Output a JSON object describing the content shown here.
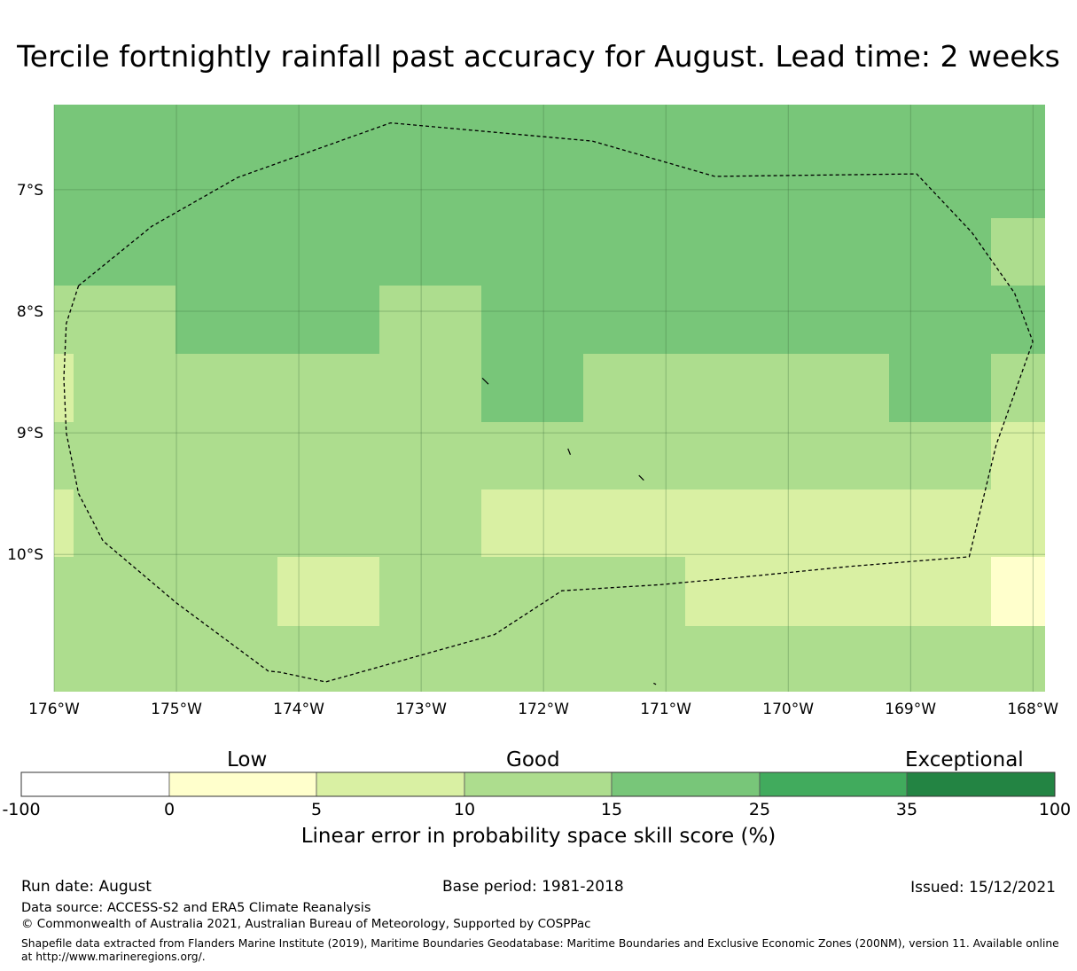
{
  "title": "Tercile fortnightly rainfall past accuracy for August. Lead time: 2 weeks",
  "map": {
    "lon_range": [
      -176.0,
      -167.9
    ],
    "lat_range": [
      -11.13,
      -6.3
    ],
    "lon_ticks": [
      {
        "value": -176,
        "label": "176°W"
      },
      {
        "value": -175,
        "label": "175°W"
      },
      {
        "value": -174,
        "label": "174°W"
      },
      {
        "value": -173,
        "label": "173°W"
      },
      {
        "value": -172,
        "label": "172°W"
      },
      {
        "value": -171,
        "label": "171°W"
      },
      {
        "value": -170,
        "label": "170°W"
      },
      {
        "value": -169,
        "label": "169°W"
      },
      {
        "value": -168,
        "label": "168°W"
      }
    ],
    "lat_ticks": [
      {
        "value": -7,
        "label": "7°S"
      },
      {
        "value": -8,
        "label": "8°S"
      },
      {
        "value": -9,
        "label": "9°S"
      },
      {
        "value": -10,
        "label": "10°S"
      }
    ],
    "cell_colors": {
      "a": "#78c679",
      "b": "#addd8e",
      "c": "#d9f0a3",
      "d": "#ffffcc"
    },
    "eez_boundary": [
      [
        -175.8,
        -7.79
      ],
      [
        -175.9,
        -8.1
      ],
      [
        -175.92,
        -8.55
      ],
      [
        -175.9,
        -9.0
      ],
      [
        -175.8,
        -9.5
      ],
      [
        -175.6,
        -9.89
      ],
      [
        -175.0,
        -10.4
      ],
      [
        -174.25,
        -10.96
      ],
      [
        -174.15,
        -10.97
      ],
      [
        -173.78,
        -11.05
      ],
      [
        -172.4,
        -10.66
      ],
      [
        -171.85,
        -10.3
      ],
      [
        -171.05,
        -10.25
      ],
      [
        -170.3,
        -10.18
      ],
      [
        -169.5,
        -10.1
      ],
      [
        -168.52,
        -10.02
      ],
      [
        -168.3,
        -9.1
      ],
      [
        -168.0,
        -8.25
      ],
      [
        -168.15,
        -7.85
      ],
      [
        -168.5,
        -7.35
      ],
      [
        -168.95,
        -6.87
      ],
      [
        -170.6,
        -6.89
      ],
      [
        -171.6,
        -6.6
      ],
      [
        -173.25,
        -6.45
      ],
      [
        -174.5,
        -6.9
      ],
      [
        -175.2,
        -7.3
      ],
      [
        -175.8,
        -7.79
      ]
    ],
    "islands": [
      [
        [
          -172.5,
          -8.55
        ],
        [
          -172.45,
          -8.6
        ]
      ],
      [
        [
          -171.8,
          -9.13
        ],
        [
          -171.78,
          -9.18
        ]
      ],
      [
        [
          -171.22,
          -9.35
        ],
        [
          -171.18,
          -9.39
        ]
      ],
      [
        [
          -171.1,
          -11.06
        ],
        [
          -171.08,
          -11.07
        ]
      ]
    ]
  },
  "colorbar": {
    "category_labels": [
      "Low",
      "Good",
      "Exceptional"
    ],
    "colors": [
      "#ffffff",
      "#ffffcc",
      "#d9f0a3",
      "#addd8e",
      "#78c679",
      "#41ab5d",
      "#238443"
    ],
    "ticks": [
      "-100",
      "0",
      "5",
      "10",
      "15",
      "25",
      "35",
      "100"
    ],
    "title": "Linear error in probability space skill score (%)"
  },
  "footer": {
    "run_date": "Run date: August",
    "base_period": "Base period: 1981-2018",
    "issued": "Issued: 15/12/2021",
    "data_source": "Data source: ACCESS-S2 and ERA5 Climate Reanalysis",
    "copyright": "© Commonwealth of Australia 2021, Australian Bureau of Meteorology, Supported by COSPPac",
    "shapefile": "Shapefile data extracted from Flanders Marine Institute (2019), Maritime Boundaries Geodatabase: Maritime Boundaries and Exclusive Economic Zones (200NM), version 11. Available online at http://www.marineregions.org/."
  }
}
